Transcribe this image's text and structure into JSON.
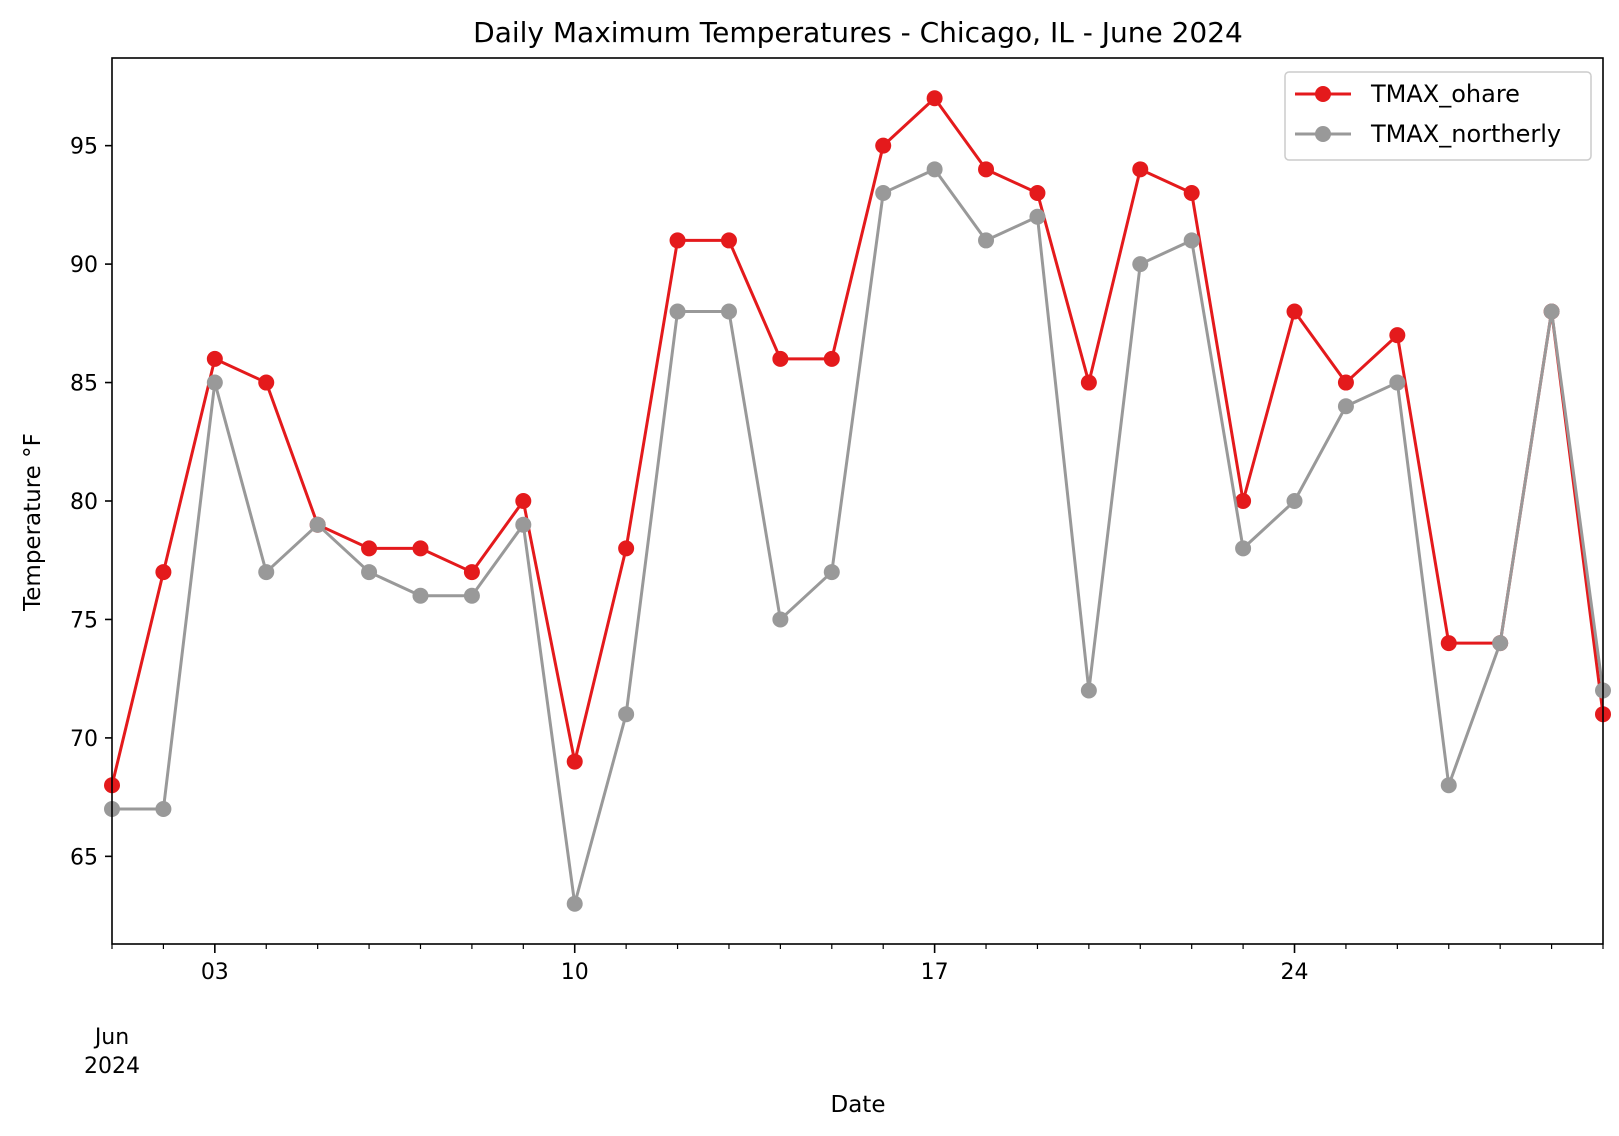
{
  "chart_data": {
    "type": "line",
    "title": "Daily Maximum Temperatures - Chicago, IL - June 2024",
    "xlabel": "Date",
    "ylabel": "Temperature $^\\circ$F",
    "ylabel_display": "Temperature °F",
    "x": [
      "2024-06-01",
      "2024-06-02",
      "2024-06-03",
      "2024-06-04",
      "2024-06-05",
      "2024-06-06",
      "2024-06-07",
      "2024-06-08",
      "2024-06-09",
      "2024-06-10",
      "2024-06-11",
      "2024-06-12",
      "2024-06-13",
      "2024-06-14",
      "2024-06-15",
      "2024-06-16",
      "2024-06-17",
      "2024-06-18",
      "2024-06-19",
      "2024-06-20",
      "2024-06-21",
      "2024-06-22",
      "2024-06-23",
      "2024-06-24",
      "2024-06-25",
      "2024-06-26",
      "2024-06-27",
      "2024-06-28",
      "2024-06-29",
      "2024-06-30"
    ],
    "x_tick_labels": [
      {
        "date": "2024-06-03",
        "label": "03"
      },
      {
        "date": "2024-06-10",
        "label": "10"
      },
      {
        "date": "2024-06-17",
        "label": "17"
      },
      {
        "date": "2024-06-24",
        "label": "24"
      }
    ],
    "x_start_label": [
      "Jun",
      "2024"
    ],
    "xlim": [
      "2024-06-01",
      "2024-06-30"
    ],
    "ylim": [
      61.3,
      98.7
    ],
    "y_ticks": [
      65,
      70,
      75,
      80,
      85,
      90,
      95
    ],
    "grid": false,
    "legend_position": "top-right",
    "series": [
      {
        "name": "TMAX_ohare",
        "color": "#e41a1c",
        "values": [
          68,
          77,
          86,
          85,
          79,
          78,
          78,
          77,
          80,
          69,
          78,
          91,
          91,
          86,
          86,
          95,
          97,
          94,
          93,
          85,
          94,
          93,
          80,
          88,
          85,
          87,
          74,
          74,
          88,
          71
        ]
      },
      {
        "name": "TMAX_northerly",
        "color": "#999999",
        "values": [
          67,
          67,
          85,
          77,
          79,
          77,
          76,
          76,
          79,
          63,
          71,
          88,
          88,
          75,
          77,
          93,
          94,
          91,
          92,
          72,
          90,
          91,
          78,
          80,
          84,
          85,
          68,
          74,
          88,
          72
        ]
      }
    ]
  }
}
